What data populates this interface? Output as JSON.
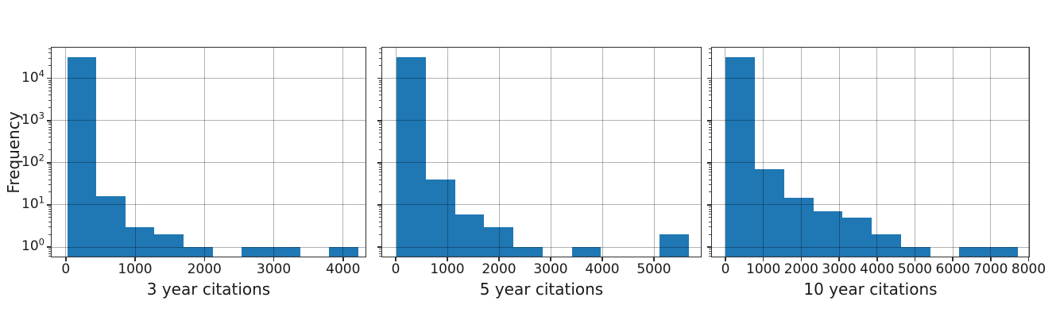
{
  "figure": {
    "background": "#ffffff",
    "text_color": "#1a1a1a",
    "spine_color": "#2e2e2e",
    "grid_color": "rgba(0,0,0,0.30)"
  },
  "chart_data": [
    {
      "type": "bar",
      "subtype": "histogram",
      "title": "",
      "xlabel": "3 year citations",
      "ylabel": "Frequency",
      "yscale": "log",
      "grid": true,
      "bar_color": "#1f77b4",
      "bin_edges": [
        20,
        440,
        860,
        1280,
        1700,
        2120,
        2540,
        2960,
        3380,
        3800,
        4220
      ],
      "counts": [
        32000,
        16,
        3,
        2,
        1,
        0,
        1,
        1,
        0,
        1
      ],
      "xticks": [
        0,
        1000,
        2000,
        3000,
        4000
      ],
      "ytick_labels": [
        "10^0",
        "10^1",
        "10^2",
        "10^3",
        "10^4"
      ],
      "xlim": [
        -215,
        4335
      ],
      "ylim": [
        0.57,
        56000
      ]
    },
    {
      "type": "bar",
      "subtype": "histogram",
      "title": "",
      "xlabel": "5 year citations",
      "ylabel": "",
      "yscale": "log",
      "grid": true,
      "bar_color": "#1f77b4",
      "bin_edges": [
        20,
        585,
        1150,
        1715,
        2280,
        2845,
        3410,
        3975,
        4540,
        5105,
        5670
      ],
      "counts": [
        32000,
        40,
        6,
        3,
        1,
        0,
        1,
        0,
        0,
        2
      ],
      "xticks": [
        0,
        1000,
        2000,
        3000,
        4000,
        5000
      ],
      "ytick_labels": [],
      "xlim": [
        -277,
        5923
      ],
      "ylim": [
        0.57,
        56000
      ]
    },
    {
      "type": "bar",
      "subtype": "histogram",
      "title": "",
      "xlabel": "10 year citations",
      "ylabel": "",
      "yscale": "log",
      "grid": true,
      "bar_color": "#1f77b4",
      "bin_edges": [
        10,
        780,
        1550,
        2320,
        3090,
        3860,
        4630,
        5400,
        6170,
        6940,
        7710
      ],
      "counts": [
        32000,
        70,
        15,
        7,
        5,
        2,
        1,
        0,
        1,
        1
      ],
      "xticks": [
        0,
        1000,
        2000,
        3000,
        4000,
        5000,
        6000,
        7000,
        8000
      ],
      "ytick_labels": [],
      "xlim": [
        -377,
        8030
      ],
      "ylim": [
        0.57,
        56000
      ]
    }
  ]
}
